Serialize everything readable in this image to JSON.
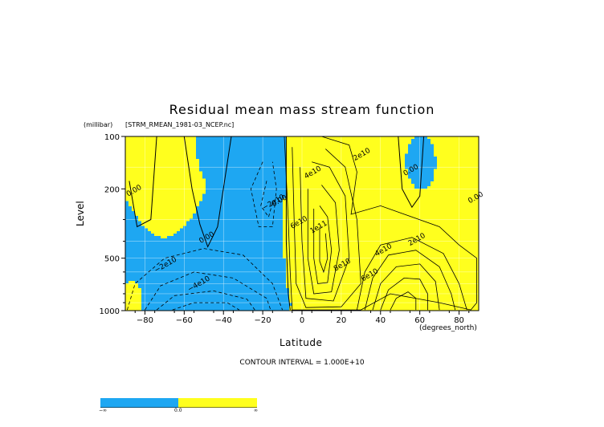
{
  "colors": {
    "negative": "#1ea7f2",
    "positive": "#ffff1e",
    "contour": "#000000",
    "grid": "#ffffff"
  },
  "chart_data": {
    "type": "contour",
    "title": "Residual mean mass stream function",
    "subtitle": "[STRM_RMEAN_1981-03_NCEP.nc]",
    "xlabel": "Latitude",
    "xunit": "(degrees_north)",
    "ylabel": "Level",
    "yunit": "(millibar)",
    "xlim": [
      -90,
      90
    ],
    "ylim": [
      1000,
      100
    ],
    "yscale": "log",
    "xticks": [
      -80,
      -60,
      -40,
      -20,
      0,
      20,
      40,
      60,
      80
    ],
    "xtick_labels": [
      "−80",
      "−60",
      "−40",
      "−20",
      "0",
      "20",
      "40",
      "60",
      "80"
    ],
    "yticks": [
      100,
      200,
      500,
      1000
    ],
    "contour_interval_text": "CONTOUR INTERVAL = 1.000E+10",
    "contour_labels": [
      {
        "text": "0.00",
        "lat": -85,
        "lev": 210
      },
      {
        "text": "0.00",
        "lat": -48,
        "lev": 390
      },
      {
        "text": "0.00",
        "lat": -11,
        "lev": 240
      },
      {
        "text": "0.00",
        "lat": 56,
        "lev": 160
      },
      {
        "text": "0.00",
        "lat": 89,
        "lev": 230
      },
      {
        "text": "−2e10",
        "lat": -69,
        "lev": 560
      },
      {
        "text": "−4e10",
        "lat": -52,
        "lev": 720
      },
      {
        "text": "−2e10",
        "lat": -14,
        "lev": 245
      },
      {
        "text": "2e10",
        "lat": 31,
        "lev": 130
      },
      {
        "text": "4e10",
        "lat": 6,
        "lev": 165
      },
      {
        "text": "6e10",
        "lat": -1,
        "lev": 320
      },
      {
        "text": "1e11",
        "lat": 9,
        "lev": 340
      },
      {
        "text": "8e10",
        "lat": 21,
        "lev": 560
      },
      {
        "text": "2e10",
        "lat": 59,
        "lev": 400
      },
      {
        "text": "4e10",
        "lat": 42,
        "lev": 460
      },
      {
        "text": "6e10",
        "lat": 35,
        "lev": 640
      }
    ],
    "grid": true,
    "legend": {
      "position": "bottom-left",
      "labels": [
        "−∞",
        "0.0",
        "∞"
      ]
    }
  }
}
